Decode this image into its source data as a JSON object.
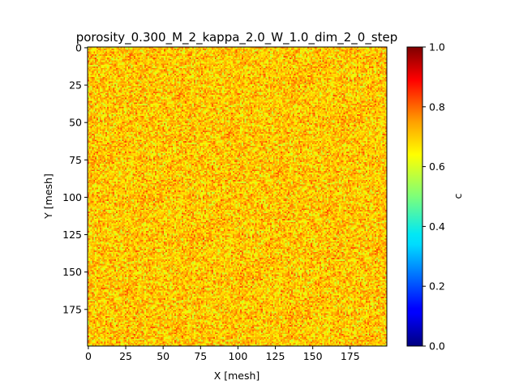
{
  "chart_data": {
    "type": "heatmap",
    "title": "porosity_0.300_M_2_kappa_2.0_W_1.0_dim_2_0_step",
    "xlabel": "X [mesh]",
    "ylabel": "Y [mesh]",
    "colorbar_label": "c",
    "colormap": "jet",
    "grid": false,
    "x_range": [
      0,
      200
    ],
    "y_range": [
      0,
      200
    ],
    "y_inverted": true,
    "x_ticks": [
      "0",
      "25",
      "50",
      "75",
      "100",
      "125",
      "150",
      "175"
    ],
    "y_ticks": [
      "0",
      "25",
      "50",
      "75",
      "100",
      "125",
      "150",
      "175"
    ],
    "x_tick_values": [
      0,
      25,
      50,
      75,
      100,
      125,
      150,
      175
    ],
    "y_tick_values": [
      0,
      25,
      50,
      75,
      100,
      125,
      150,
      175
    ],
    "colorbar_range": [
      0.0,
      1.0
    ],
    "colorbar_ticks": [
      "0.0",
      "0.2",
      "0.4",
      "0.6",
      "0.8",
      "1.0"
    ],
    "colorbar_tick_values": [
      0.0,
      0.2,
      0.4,
      0.6,
      0.8,
      1.0
    ],
    "value_distribution": {
      "mean": 0.7,
      "spread": 0.1,
      "description_min": 0.6,
      "description_max": 0.8
    }
  }
}
